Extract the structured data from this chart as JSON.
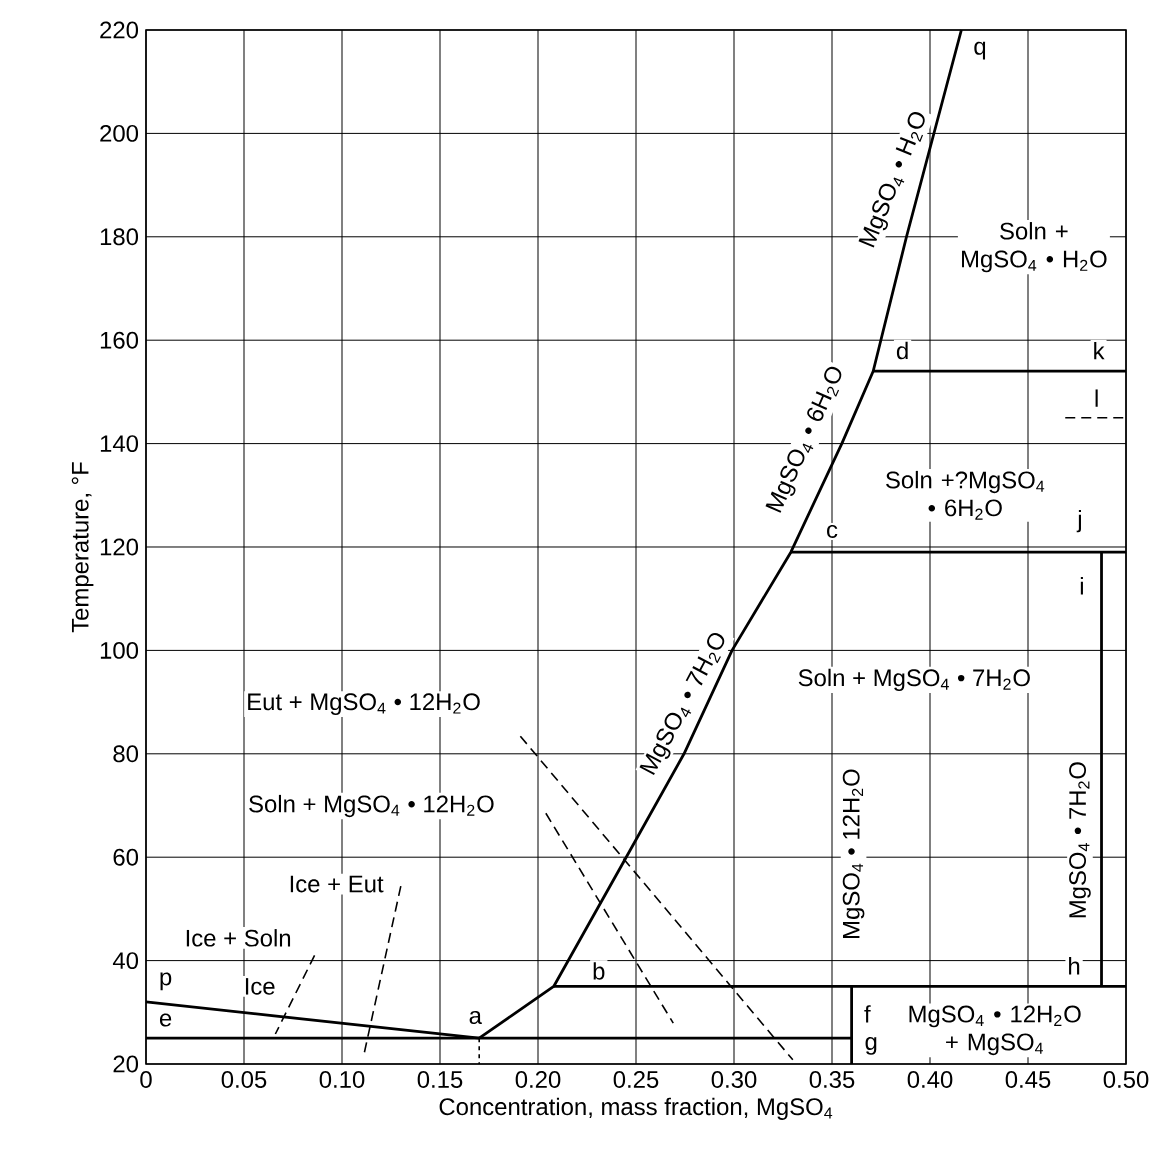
{
  "chart_data": {
    "type": "line",
    "xlabel": "Concentration, mass fraction, MgSO$_{4}$",
    "ylabel": "Temperature, °F",
    "xlim": [
      0,
      0.5
    ],
    "ylim": [
      20,
      220
    ],
    "xticks": [
      0,
      0.05,
      {
        "value": 0.1,
        "label": "0.10"
      },
      0.15,
      {
        "value": 0.2,
        "label": "0.20"
      },
      0.25,
      {
        "value": 0.3,
        "label": "0.30"
      },
      0.35,
      {
        "value": 0.4,
        "label": "0.40"
      },
      0.45,
      {
        "value": 0.5,
        "label": "0.50"
      }
    ],
    "yticks": [
      20,
      40,
      60,
      80,
      100,
      120,
      140,
      160,
      180,
      200,
      220
    ],
    "grid": true,
    "marker": "none",
    "series": [
      {
        "color": "#000000",
        "line_style": "solid",
        "x": [
          0,
          0.17
        ],
        "values": [
          32,
          25
        ]
      },
      {
        "color": "#000000",
        "line_style": "solid",
        "x": [
          0.17,
          0.208,
          0.245,
          0.2745,
          0.299,
          0.329,
          0.355,
          0.371,
          0.388,
          0.402,
          0.416
        ],
        "values": [
          25,
          35,
          60,
          80,
          100,
          119,
          140,
          154,
          180,
          200,
          220
        ]
      },
      {
        "color": "#000000",
        "line_style": "solid",
        "x": [
          0,
          0.36
        ],
        "values": [
          25,
          25
        ]
      },
      {
        "color": "#000000",
        "line_style": "solid",
        "x": [
          0.36,
          0.36
        ],
        "values": [
          35,
          20
        ]
      },
      {
        "color": "#000000",
        "line_style": "solid",
        "x": [
          0.208,
          0.5
        ],
        "values": [
          35,
          35
        ]
      },
      {
        "color": "#000000",
        "line_style": "solid",
        "x": [
          0.4875,
          0.4875
        ],
        "values": [
          35,
          119
        ]
      },
      {
        "color": "#000000",
        "line_style": "solid",
        "x": [
          0.329,
          0.5
        ],
        "values": [
          119,
          119
        ]
      },
      {
        "color": "#000000",
        "line_style": "solid",
        "x": [
          0.371,
          0.5
        ],
        "values": [
          154,
          154
        ]
      },
      {
        "color": "#000000",
        "line_style": "dashed",
        "x": [
          0.469,
          0.5
        ],
        "values": [
          145,
          145
        ]
      },
      {
        "color": "#000000",
        "line_style": "dotted",
        "x": [
          0.17,
          0.17
        ],
        "values": [
          25,
          20
        ]
      },
      {
        "color": "#000000",
        "line_style": "dashed",
        "x": [
          0.191,
          0.33
        ],
        "values": [
          83.4,
          20.8
        ]
      },
      {
        "color": "#000000",
        "line_style": "dashed",
        "x": [
          0.204,
          0.269
        ],
        "values": [
          68.5,
          27.9
        ]
      },
      {
        "color": "#000000",
        "line_style": "dashed",
        "x": [
          0.13,
          0.111
        ],
        "values": [
          54.4,
          21.5
        ]
      },
      {
        "color": "#000000",
        "line_style": "dashed",
        "x": [
          0.086,
          0.066
        ],
        "values": [
          41,
          25.8
        ]
      }
    ],
    "annotations": [
      "MgSO$_{4}$ • H$_{2}$O",
      "Soln + MgSO$_{4}$ • H$_{2}$O",
      "MgSO$_{4}$ • 6H$_{2}$O",
      "Soln +?MgSO$_{4}$ • 6H$_{2}$O",
      "MgSO$_{4}$ • 7H$_{2}$O",
      "Soln + MgSO$_{4}$ • 7H$_{2}$O",
      "MgSO$_{4}$ • 12H$_{2}$O",
      "MgSO$_{4}$ • 7H$_{2}$O",
      "Eut + MgSO$_{4}$ • 12H$_{2}$O",
      "Soln + MgSO$_{4}$ • 12H$_{2}$O",
      "Ice + Eut",
      "Ice + Soln",
      "Ice",
      "MgSO$_{4}$ • 12H$_{2}$O + MgSO$_{4}$",
      {
        "text": "f",
        "x": 0.368,
        "y": 29.7
      },
      {
        "text": "q",
        "x": 0.4255,
        "y": 216
      },
      {
        "text": "d",
        "x": 0.386,
        "y": 158
      },
      {
        "text": "k",
        "x": 0.486,
        "y": 158
      },
      {
        "text": "l",
        "x": 0.485,
        "y": 148.8
      },
      {
        "text": "c",
        "x": 0.35,
        "y": 123
      },
      {
        "text": "j",
        "x": 0.4765,
        "y": 125
      },
      {
        "text": "i",
        "x": 0.4775,
        "y": 112.5
      },
      {
        "text": "h",
        "x": 0.4735,
        "y": 39
      },
      {
        "text": "b",
        "x": 0.231,
        "y": 38
      },
      {
        "text": "a",
        "x": 0.168,
        "y": 29
      },
      {
        "text": "p",
        "x": 0.01,
        "y": 36
      },
      {
        "text": "e",
        "x": 0.01,
        "y": 28.5
      },
      {
        "text": "g",
        "x": 0.37,
        "y": 23.5
      }
    ]
  }
}
